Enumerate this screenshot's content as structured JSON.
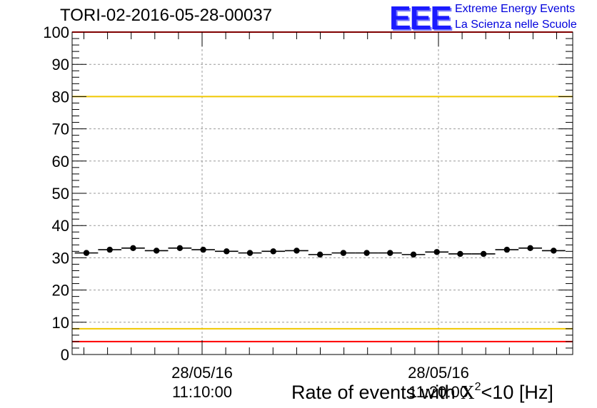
{
  "header": {
    "run_title": "TORI-02-2016-05-28-00037",
    "logo_mark": "EEE",
    "logo_line1": "Extreme Energy Events",
    "logo_line2": "La Scienza nelle Scuole"
  },
  "chart_data": {
    "type": "scatter",
    "title": "TORI-02-2016-05-28-00037",
    "xlabel": "Rate of events with χ2<10 [Hz]",
    "xlabel_parts": {
      "prefix": "Rate of events with ",
      "chi": "X",
      "power": "2",
      "suffix": "<10 [Hz]"
    },
    "ylabel": "",
    "ylim": [
      0,
      100
    ],
    "y_ticks": [
      "0",
      "10",
      "20",
      "30",
      "40",
      "50",
      "60",
      "70",
      "80",
      "90",
      "100"
    ],
    "x_ticks": [
      {
        "date": "28/05/16",
        "time": "11:10:00"
      },
      {
        "date": "28/05/16",
        "time": "11:20:00"
      }
    ],
    "grid": true,
    "series": [
      {
        "values": [
          31.5,
          32.5,
          33,
          32.2,
          33,
          32.5,
          32,
          31.5,
          32,
          32.2,
          31,
          31.5,
          31.5,
          31.5,
          31,
          31.8,
          31.2,
          31.2,
          32.5,
          33,
          32.2
        ],
        "color": "#000000"
      }
    ],
    "reference_lines": [
      {
        "value": 100,
        "color": "#ff0000"
      },
      {
        "value": 80,
        "color": "#f0c800"
      },
      {
        "value": 8,
        "color": "#f0c800"
      },
      {
        "value": 4,
        "color": "#ff0000"
      }
    ]
  }
}
